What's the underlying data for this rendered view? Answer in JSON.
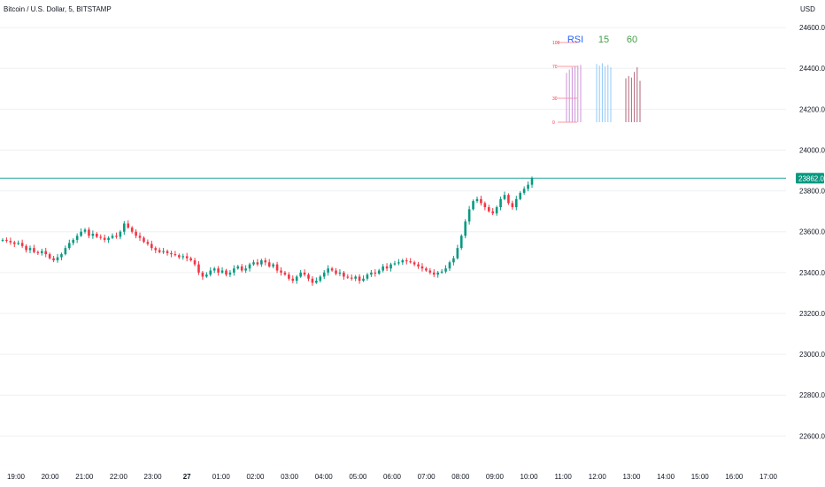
{
  "title": "Bitcoin / U.S. Dollar, 5, BITSTAMP",
  "currency_label": "USD",
  "current_price_label": "23862.00",
  "colors": {
    "up": "#089981",
    "down": "#f23645",
    "grid": "#eef0f3",
    "price_line": "#26a69a",
    "rsi_header_rsi": "#2962ff",
    "rsi_header_15": "#43a047",
    "rsi_header_60": "#43a047"
  },
  "chart_data": {
    "type": "candlestick",
    "y_ticks": [
      "24600.00",
      "24400.00",
      "24200.00",
      "24000.00",
      "23800.00",
      "23600.00",
      "23400.00",
      "23200.00",
      "23000.00",
      "22800.00",
      "22600.00"
    ],
    "ylim": [
      22480,
      24700
    ],
    "x_ticks": [
      "19:00",
      "20:00",
      "21:00",
      "22:00",
      "23:00",
      "27",
      "01:00",
      "02:00",
      "03:00",
      "04:00",
      "05:00",
      "06:00",
      "07:00",
      "08:00",
      "09:00",
      "10:00",
      "11:00",
      "12:00",
      "13:00",
      "14:00",
      "15:00",
      "16:00",
      "17:00"
    ],
    "current_price": 23862,
    "closes": [
      23560,
      23555,
      23548,
      23540,
      23545,
      23530,
      23510,
      23520,
      23500,
      23495,
      23505,
      23490,
      23470,
      23460,
      23475,
      23490,
      23520,
      23545,
      23560,
      23580,
      23600,
      23610,
      23580,
      23590,
      23575,
      23570,
      23560,
      23570,
      23580,
      23575,
      23600,
      23640,
      23620,
      23600,
      23580,
      23570,
      23550,
      23540,
      23520,
      23510,
      23500,
      23505,
      23495,
      23490,
      23485,
      23475,
      23480,
      23470,
      23460,
      23440,
      23400,
      23380,
      23390,
      23410,
      23420,
      23400,
      23410,
      23390,
      23400,
      23420,
      23430,
      23410,
      23420,
      23440,
      23450,
      23440,
      23460,
      23450,
      23430,
      23440,
      23410,
      23400,
      23390,
      23370,
      23360,
      23380,
      23400,
      23390,
      23370,
      23350,
      23360,
      23380,
      23400,
      23420,
      23410,
      23395,
      23400,
      23380,
      23375,
      23370,
      23380,
      23360,
      23370,
      23390,
      23400,
      23395,
      23410,
      23430,
      23420,
      23440,
      23445,
      23450,
      23460,
      23455,
      23450,
      23440,
      23430,
      23420,
      23410,
      23400,
      23390,
      23400,
      23405,
      23420,
      23450,
      23470,
      23520,
      23580,
      23650,
      23710,
      23750,
      23760,
      23740,
      23720,
      23700,
      23690,
      23720,
      23760,
      23780,
      23740,
      23720,
      23760,
      23790,
      23810,
      23830,
      23862
    ],
    "rsi_table": {
      "headers": [
        "RSI",
        "15",
        "60"
      ],
      "scale": [
        "100",
        "70",
        "30",
        "0"
      ],
      "rsi_values": [
        62,
        66,
        69,
        70,
        71,
        72
      ],
      "values_15": [
        73,
        71,
        74,
        70,
        72,
        69
      ],
      "values_60": [
        55,
        58,
        56,
        63,
        69,
        52
      ]
    }
  }
}
